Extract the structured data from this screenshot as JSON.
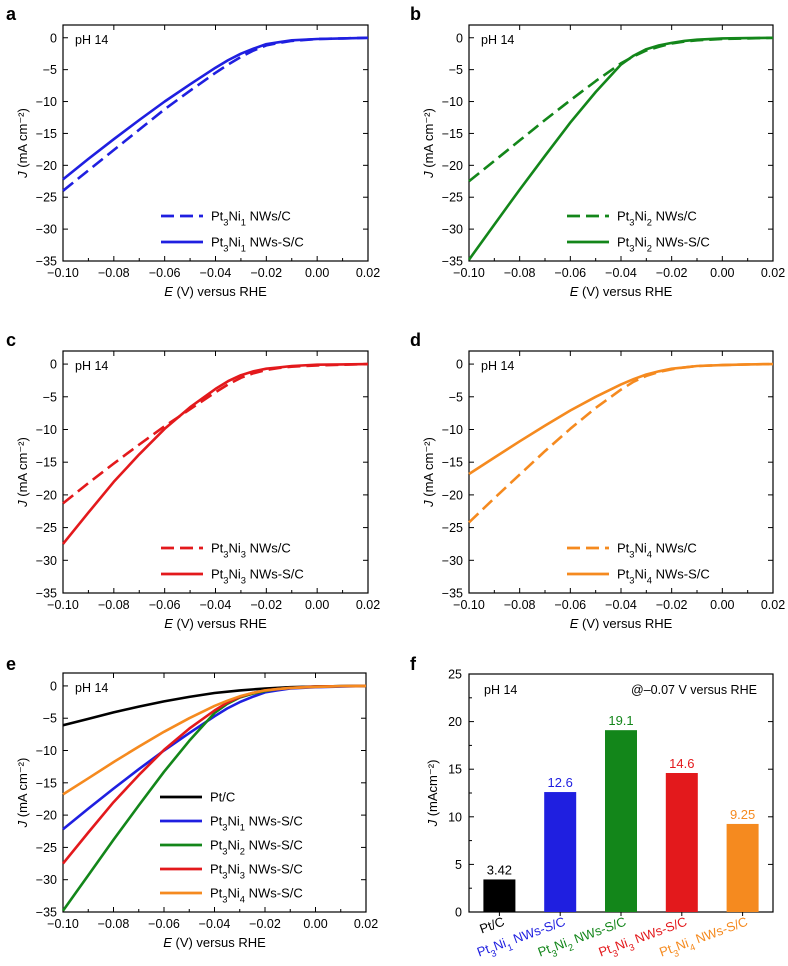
{
  "chart_data": [
    {
      "panel": "a",
      "type": "line",
      "annotation": "pH 14",
      "xlabel": "E (V) versus RHE",
      "ylabel": "J (mA cm⁻²)",
      "xlim": [
        -0.1,
        0.02
      ],
      "ylim": [
        -35,
        2
      ],
      "xticks": [
        "-0.10",
        "-0.08",
        "-0.06",
        "-0.04",
        "-0.02",
        "0.00",
        "0.02"
      ],
      "yticks": [
        "0",
        "-5",
        "-10",
        "-15",
        "-20",
        "-25",
        "-30",
        "-35"
      ],
      "legend_position": "bottom-right",
      "series": [
        {
          "name": "Pt3Ni1 NWs/C",
          "name_parts": [
            "Pt",
            "3",
            "Ni",
            "1",
            " NWs/C"
          ],
          "color": "#1f1fe0",
          "dash": true,
          "x": [
            -0.1,
            -0.09,
            -0.08,
            -0.07,
            -0.06,
            -0.05,
            -0.04,
            -0.035,
            -0.03,
            -0.025,
            -0.02,
            -0.015,
            -0.01,
            0.0,
            0.01,
            0.02
          ],
          "y": [
            -24,
            -20.8,
            -17.6,
            -14.4,
            -11.2,
            -8.3,
            -5.5,
            -4.2,
            -3.0,
            -2.0,
            -1.2,
            -0.8,
            -0.5,
            -0.2,
            -0.1,
            0
          ]
        },
        {
          "name": "Pt3Ni1 NWs-S/C",
          "name_parts": [
            "Pt",
            "3",
            "Ni",
            "1",
            " NWs-S/C"
          ],
          "color": "#1f1fe0",
          "dash": false,
          "x": [
            -0.1,
            -0.09,
            -0.08,
            -0.07,
            -0.06,
            -0.05,
            -0.04,
            -0.035,
            -0.03,
            -0.025,
            -0.02,
            -0.015,
            -0.01,
            0.0,
            0.01,
            0.02
          ],
          "y": [
            -22.2,
            -19.0,
            -15.9,
            -12.9,
            -10.0,
            -7.3,
            -4.7,
            -3.5,
            -2.5,
            -1.7,
            -1.0,
            -0.7,
            -0.4,
            -0.2,
            -0.1,
            0
          ]
        }
      ]
    },
    {
      "panel": "b",
      "type": "line",
      "annotation": "pH 14",
      "xlabel": "E (V) versus RHE",
      "ylabel": "J (mA cm⁻²)",
      "xlim": [
        -0.1,
        0.02
      ],
      "ylim": [
        -35,
        2
      ],
      "xticks": [
        "-0.10",
        "-0.08",
        "-0.06",
        "-0.04",
        "-0.02",
        "0.00",
        "0.02"
      ],
      "yticks": [
        "0",
        "-5",
        "-10",
        "-15",
        "-20",
        "-25",
        "-30",
        "-35"
      ],
      "legend_position": "bottom-right",
      "series": [
        {
          "name": "Pt3Ni2 NWs/C",
          "name_parts": [
            "Pt",
            "3",
            "Ni",
            "2",
            " NWs/C"
          ],
          "color": "#13861a",
          "dash": true,
          "x": [
            -0.1,
            -0.09,
            -0.08,
            -0.07,
            -0.06,
            -0.05,
            -0.04,
            -0.035,
            -0.03,
            -0.025,
            -0.02,
            -0.015,
            -0.01,
            0.0,
            0.01,
            0.02
          ],
          "y": [
            -22.5,
            -19.3,
            -16.1,
            -12.9,
            -9.8,
            -6.8,
            -4.0,
            -2.9,
            -2.0,
            -1.4,
            -0.9,
            -0.6,
            -0.4,
            -0.2,
            -0.1,
            0
          ]
        },
        {
          "name": "Pt3Ni2 NWs-S/C",
          "name_parts": [
            "Pt",
            "3",
            "Ni",
            "2",
            " NWs-S/C"
          ],
          "color": "#13861a",
          "dash": false,
          "x": [
            -0.1,
            -0.09,
            -0.08,
            -0.07,
            -0.06,
            -0.05,
            -0.04,
            -0.035,
            -0.03,
            -0.025,
            -0.02,
            -0.015,
            -0.01,
            0.0,
            0.01,
            0.02
          ],
          "y": [
            -34.8,
            -29.3,
            -23.8,
            -18.5,
            -13.3,
            -8.5,
            -4.2,
            -2.8,
            -1.8,
            -1.2,
            -0.8,
            -0.5,
            -0.3,
            -0.1,
            -0.05,
            0
          ]
        }
      ]
    },
    {
      "panel": "c",
      "type": "line",
      "annotation": "pH 14",
      "xlabel": "E (V) versus RHE",
      "ylabel": "J (mA cm⁻²)",
      "xlim": [
        -0.1,
        0.02
      ],
      "ylim": [
        -35,
        2
      ],
      "xticks": [
        "-0.10",
        "-0.08",
        "-0.06",
        "-0.04",
        "-0.02",
        "0.00",
        "0.02"
      ],
      "yticks": [
        "0",
        "-5",
        "-10",
        "-15",
        "-20",
        "-25",
        "-30",
        "-35"
      ],
      "legend_position": "bottom-right",
      "series": [
        {
          "name": "Pt3Ni3 NWs/C",
          "name_parts": [
            "Pt",
            "3",
            "Ni",
            "3",
            " NWs/C"
          ],
          "color": "#e3191c",
          "dash": true,
          "x": [
            -0.1,
            -0.09,
            -0.08,
            -0.07,
            -0.06,
            -0.05,
            -0.04,
            -0.035,
            -0.03,
            -0.025,
            -0.02,
            -0.015,
            -0.01,
            0.0,
            0.01,
            0.02
          ],
          "y": [
            -21.3,
            -18.2,
            -15.2,
            -12.3,
            -9.5,
            -6.9,
            -4.3,
            -3.1,
            -2.1,
            -1.4,
            -0.9,
            -0.6,
            -0.4,
            -0.2,
            -0.1,
            0
          ]
        },
        {
          "name": "Pt3Ni3 NWs-S/C",
          "name_parts": [
            "Pt",
            "3",
            "Ni",
            "3",
            " NWs-S/C"
          ],
          "color": "#e3191c",
          "dash": false,
          "x": [
            -0.1,
            -0.09,
            -0.08,
            -0.07,
            -0.06,
            -0.05,
            -0.04,
            -0.035,
            -0.03,
            -0.025,
            -0.02,
            -0.015,
            -0.01,
            0.0,
            0.01,
            0.02
          ],
          "y": [
            -27.5,
            -22.7,
            -18.0,
            -13.8,
            -9.9,
            -6.6,
            -3.8,
            -2.6,
            -1.7,
            -1.1,
            -0.7,
            -0.5,
            -0.3,
            -0.1,
            -0.05,
            0
          ]
        }
      ]
    },
    {
      "panel": "d",
      "type": "line",
      "annotation": "pH 14",
      "xlabel": "E (V) versus RHE",
      "ylabel": "J (mA cm⁻²)",
      "xlim": [
        -0.1,
        0.02
      ],
      "ylim": [
        -35,
        2
      ],
      "xticks": [
        "-0.10",
        "-0.08",
        "-0.06",
        "-0.04",
        "-0.02",
        "0.00",
        "0.02"
      ],
      "yticks": [
        "0",
        "-5",
        "-10",
        "-15",
        "-20",
        "-25",
        "-30",
        "-35"
      ],
      "legend_position": "bottom-right",
      "series": [
        {
          "name": "Pt3Ni4 NWs/C",
          "name_parts": [
            "Pt",
            "3",
            "Ni",
            "4",
            " NWs/C"
          ],
          "color": "#f58a1f",
          "dash": true,
          "x": [
            -0.1,
            -0.09,
            -0.08,
            -0.07,
            -0.06,
            -0.05,
            -0.04,
            -0.035,
            -0.03,
            -0.025,
            -0.02,
            -0.015,
            -0.01,
            0.0,
            0.01,
            0.02
          ],
          "y": [
            -24.2,
            -20.5,
            -16.9,
            -13.3,
            -9.9,
            -6.7,
            -3.9,
            -2.7,
            -1.8,
            -1.2,
            -0.8,
            -0.5,
            -0.3,
            -0.15,
            -0.05,
            0
          ]
        },
        {
          "name": "Pt3Ni4 NWs-S/C",
          "name_parts": [
            "Pt",
            "3",
            "Ni",
            "4",
            " NWs-S/C"
          ],
          "color": "#f58a1f",
          "dash": false,
          "x": [
            -0.1,
            -0.09,
            -0.08,
            -0.07,
            -0.06,
            -0.05,
            -0.04,
            -0.035,
            -0.03,
            -0.025,
            -0.02,
            -0.015,
            -0.01,
            0.0,
            0.01,
            0.02
          ],
          "y": [
            -16.8,
            -14.3,
            -11.8,
            -9.4,
            -7.1,
            -5.0,
            -3.1,
            -2.3,
            -1.6,
            -1.1,
            -0.7,
            -0.5,
            -0.3,
            -0.15,
            -0.05,
            0
          ]
        }
      ]
    },
    {
      "panel": "e",
      "type": "line",
      "annotation": "pH 14",
      "xlabel": "E (V) versus RHE",
      "ylabel": "J (mA cm⁻²)",
      "xlim": [
        -0.1,
        0.02
      ],
      "ylim": [
        -35,
        2
      ],
      "xticks": [
        "-0.10",
        "-0.08",
        "-0.06",
        "-0.04",
        "-0.02",
        "0.00",
        "0.02"
      ],
      "yticks": [
        "0",
        "-5",
        "-10",
        "-15",
        "-20",
        "-25",
        "-30",
        "-35"
      ],
      "legend_position": "bottom-right",
      "series": [
        {
          "name": "Pt/C",
          "name_parts": [
            "Pt/C"
          ],
          "color": "#000000",
          "dash": false,
          "x": [
            -0.1,
            -0.09,
            -0.08,
            -0.07,
            -0.06,
            -0.05,
            -0.04,
            -0.03,
            -0.02,
            -0.01,
            0.0,
            0.01,
            0.02
          ],
          "y": [
            -6.1,
            -5.1,
            -4.1,
            -3.2,
            -2.4,
            -1.7,
            -1.1,
            -0.7,
            -0.4,
            -0.2,
            -0.1,
            -0.05,
            0
          ]
        },
        {
          "name": "Pt3Ni1 NWs-S/C",
          "name_parts": [
            "Pt",
            "3",
            "Ni",
            "1",
            " NWs-S/C"
          ],
          "color": "#1f1fe0",
          "dash": false,
          "x": [
            -0.1,
            -0.09,
            -0.08,
            -0.07,
            -0.06,
            -0.05,
            -0.04,
            -0.035,
            -0.03,
            -0.025,
            -0.02,
            -0.015,
            -0.01,
            0.0,
            0.01,
            0.02
          ],
          "y": [
            -22.2,
            -19.0,
            -15.9,
            -12.9,
            -10.0,
            -7.3,
            -4.7,
            -3.5,
            -2.5,
            -1.7,
            -1.0,
            -0.7,
            -0.4,
            -0.2,
            -0.1,
            0
          ]
        },
        {
          "name": "Pt3Ni2 NWs-S/C",
          "name_parts": [
            "Pt",
            "3",
            "Ni",
            "2",
            " NWs-S/C"
          ],
          "color": "#13861a",
          "dash": false,
          "x": [
            -0.1,
            -0.09,
            -0.08,
            -0.07,
            -0.06,
            -0.05,
            -0.04,
            -0.035,
            -0.03,
            -0.025,
            -0.02,
            -0.015,
            -0.01,
            0.0,
            0.01,
            0.02
          ],
          "y": [
            -34.8,
            -29.3,
            -23.8,
            -18.5,
            -13.3,
            -8.5,
            -4.2,
            -2.8,
            -1.8,
            -1.2,
            -0.8,
            -0.5,
            -0.3,
            -0.1,
            -0.05,
            0
          ]
        },
        {
          "name": "Pt3Ni3 NWs-S/C",
          "name_parts": [
            "Pt",
            "3",
            "Ni",
            "3",
            " NWs-S/C"
          ],
          "color": "#e3191c",
          "dash": false,
          "x": [
            -0.1,
            -0.09,
            -0.08,
            -0.07,
            -0.06,
            -0.05,
            -0.04,
            -0.035,
            -0.03,
            -0.025,
            -0.02,
            -0.015,
            -0.01,
            0.0,
            0.01,
            0.02
          ],
          "y": [
            -27.5,
            -22.7,
            -18.0,
            -13.8,
            -9.9,
            -6.6,
            -3.8,
            -2.6,
            -1.7,
            -1.1,
            -0.7,
            -0.5,
            -0.3,
            -0.1,
            -0.05,
            0
          ]
        },
        {
          "name": "Pt3Ni4 NWs-S/C",
          "name_parts": [
            "Pt",
            "3",
            "Ni",
            "4",
            " NWs-S/C"
          ],
          "color": "#f58a1f",
          "dash": false,
          "x": [
            -0.1,
            -0.09,
            -0.08,
            -0.07,
            -0.06,
            -0.05,
            -0.04,
            -0.035,
            -0.03,
            -0.025,
            -0.02,
            -0.015,
            -0.01,
            0.0,
            0.01,
            0.02
          ],
          "y": [
            -16.8,
            -14.3,
            -11.8,
            -9.4,
            -7.1,
            -5.0,
            -3.1,
            -2.3,
            -1.6,
            -1.1,
            -0.7,
            -0.5,
            -0.3,
            -0.15,
            -0.05,
            0
          ]
        }
      ]
    },
    {
      "panel": "f",
      "type": "bar",
      "annotation": "pH 14",
      "annotation_right": "@–0.07 V versus RHE",
      "ylabel": "J (mAcm⁻²)",
      "ylim": [
        0,
        25
      ],
      "yticks": [
        "0",
        "5",
        "10",
        "15",
        "20",
        "25"
      ],
      "categories": [
        {
          "label": "Pt/C",
          "parts": [
            "Pt/C"
          ],
          "color": "#000000"
        },
        {
          "label": "Pt3Ni1 NWs-S/C",
          "parts": [
            "Pt",
            "3",
            "Ni",
            "1",
            " NWs-S/C"
          ],
          "color": "#1f1fe0"
        },
        {
          "label": "Pt3Ni2 NWs-S/C",
          "parts": [
            "Pt",
            "3",
            "Ni",
            "2",
            " NWs-S/C"
          ],
          "color": "#13861a"
        },
        {
          "label": "Pt3Ni3 NWs-S/C",
          "parts": [
            "Pt",
            "3",
            "Ni",
            "3",
            " NWs-S/C"
          ],
          "color": "#e3191c"
        },
        {
          "label": "Pt3Ni4 NWs-S/C",
          "parts": [
            "Pt",
            "3",
            "Ni",
            "4",
            " NWs-S/C"
          ],
          "color": "#f58a1f"
        }
      ],
      "values": [
        3.42,
        12.6,
        19.1,
        14.6,
        9.25
      ],
      "value_labels": [
        "3.42",
        "12.6",
        "19.1",
        "14.6",
        "9.25"
      ]
    }
  ]
}
